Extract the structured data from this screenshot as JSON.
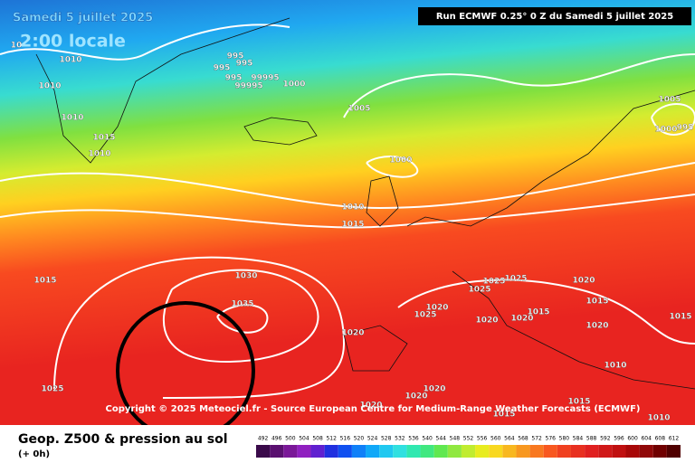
{
  "header": {
    "date": "Samedi 5 juillet 2025",
    "time": "2:00 locale",
    "run": "Run ECMWF 0.25° 0 Z du Samedi 5 juillet 2025"
  },
  "copyright": "Copyright © 2025 Meteociel.fr - Source European Centre for Medium-Range Weather Forecasts (ECMWF)",
  "footer": {
    "title": "Geop. Z500 & pression au sol",
    "subtitle": "(+ 0h)"
  },
  "isobar_labels": [
    "10",
    "1010",
    "1010",
    "1010",
    "1015",
    "1010",
    "995",
    "995",
    "995",
    "99995",
    "995",
    "99995",
    "1000",
    "1005",
    "1000",
    "1010",
    "1015",
    "1015",
    "1030",
    "1035",
    "1025",
    "1025",
    "1025",
    "1020",
    "1025",
    "1020",
    "1020",
    "1015",
    "1020",
    "1015",
    "1020",
    "1015",
    "1020",
    "1010",
    "1025",
    "1020",
    "1020",
    "1020",
    "1015",
    "1010",
    "1015",
    "1005",
    "1000",
    "995"
  ],
  "legend": {
    "values": [
      492,
      496,
      500,
      504,
      508,
      512,
      516,
      520,
      524,
      528,
      532,
      536,
      540,
      544,
      548,
      552,
      556,
      560,
      564,
      568,
      572,
      576,
      580,
      584,
      588,
      592,
      596,
      600,
      604,
      608,
      612
    ],
    "colors": [
      "#3a0a4a",
      "#5a1070",
      "#7a1898",
      "#9020c0",
      "#6020d0",
      "#2030e0",
      "#1050f0",
      "#1080f8",
      "#10a8f8",
      "#20c8f0",
      "#30e0e0",
      "#30e8b0",
      "#40e880",
      "#60e850",
      "#90e840",
      "#c0ec30",
      "#e8ec20",
      "#f8d820",
      "#f8b820",
      "#f89820",
      "#f87820",
      "#f85820",
      "#f04020",
      "#e83020",
      "#e02020",
      "#d01818",
      "#c01010",
      "#a80808",
      "#900808",
      "#700000",
      "#500000"
    ]
  }
}
